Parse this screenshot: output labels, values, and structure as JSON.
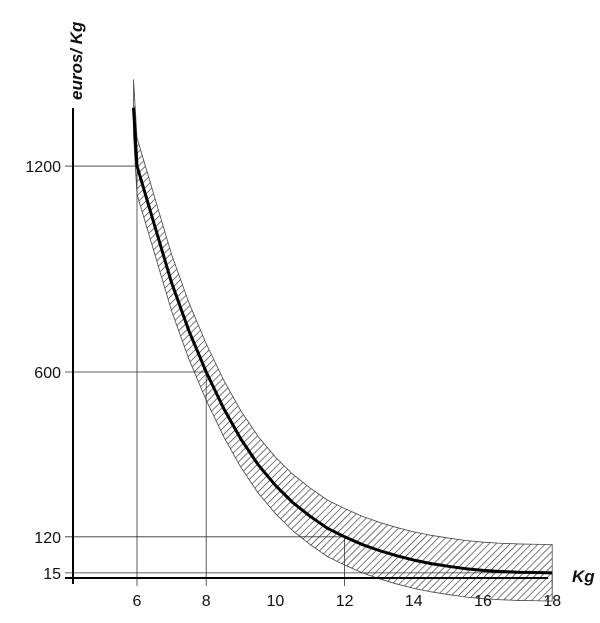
{
  "chart_data": {
    "type": "line",
    "title": "",
    "xlabel": "Kg",
    "ylabel": "euros/ Kg",
    "x_ticks": [
      6,
      8,
      10,
      12,
      14,
      16,
      18
    ],
    "y_ticks": [
      15,
      120,
      600,
      1200
    ],
    "xlim": [
      4,
      18.5
    ],
    "ylim": [
      0,
      1370
    ],
    "reference_points": [
      {
        "x": 6,
        "y": 1200
      },
      {
        "x": 8,
        "y": 600
      },
      {
        "x": 12,
        "y": 120
      },
      {
        "x": 18,
        "y": 15
      }
    ],
    "series": [
      {
        "x": [
          5.9,
          6,
          6.5,
          7,
          7.5,
          8,
          8.5,
          9,
          9.5,
          10,
          10.5,
          11,
          11.5,
          12,
          12.5,
          13,
          13.5,
          14,
          14.5,
          15,
          15.5,
          16,
          16.5,
          17,
          17.5,
          18
        ],
        "y": [
          1370,
          1200,
          1030,
          860,
          720,
          600,
          495,
          405,
          330,
          270,
          220,
          180,
          145,
          120,
          98,
          80,
          65,
          52,
          42,
          34,
          27,
          22,
          19,
          17,
          16,
          15
        ],
        "band_halfwidth": 55
      }
    ],
    "grid": false
  }
}
